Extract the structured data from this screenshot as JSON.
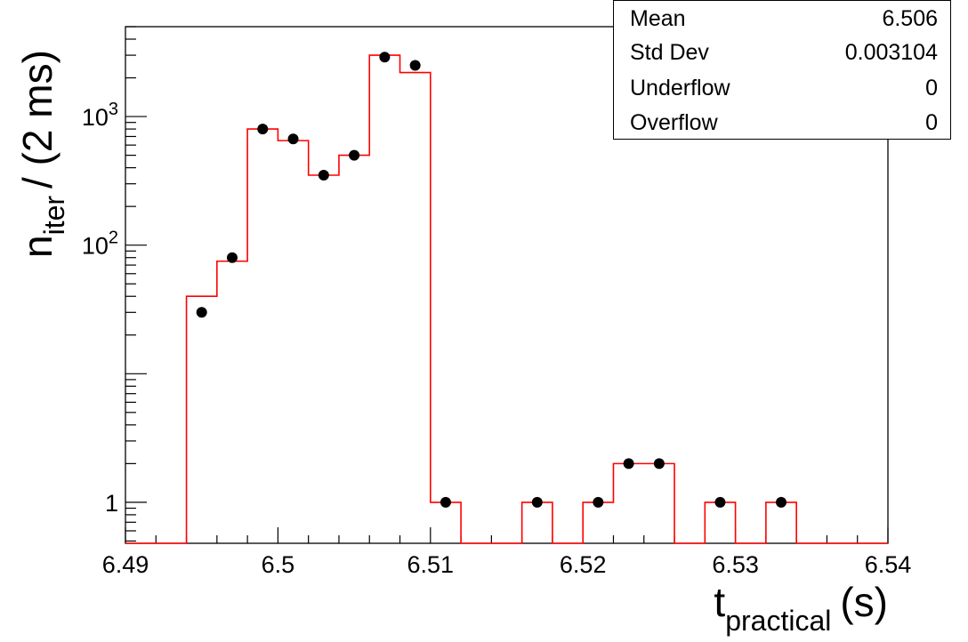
{
  "chart_data": {
    "type": "histogram",
    "xlabel_main": "t",
    "xlabel_sub": "practical",
    "xlabel_unit": "(s)",
    "ylabel_main": "n",
    "ylabel_sub": "iter",
    "ylabel_unit": "/ (2 ms)",
    "y_scale": "log",
    "xlim": [
      6.49,
      6.54
    ],
    "ylim": [
      0.48,
      5000
    ],
    "x_ticks": [
      "6.49",
      "6.5",
      "6.51",
      "6.52",
      "6.53",
      "6.54"
    ],
    "x_tick_values": [
      6.49,
      6.5,
      6.51,
      6.52,
      6.53,
      6.54
    ],
    "y_labeled_ticks": [
      {
        "value": 1,
        "base": "1",
        "exp": ""
      },
      {
        "value": 100,
        "base": "10",
        "exp": "2"
      },
      {
        "value": 1000,
        "base": "10",
        "exp": "3"
      }
    ],
    "histogram": {
      "color": "#ff0000",
      "bin_edges": [
        6.49,
        6.492,
        6.494,
        6.496,
        6.498,
        6.5,
        6.502,
        6.504,
        6.506,
        6.508,
        6.51,
        6.512,
        6.514,
        6.516,
        6.518,
        6.52,
        6.522,
        6.524,
        6.526,
        6.528,
        6.53,
        6.532,
        6.534,
        6.536,
        6.538,
        6.54
      ],
      "counts": [
        0,
        0,
        40,
        75,
        800,
        650,
        350,
        500,
        3000,
        2200,
        1,
        0,
        0,
        1,
        0,
        1,
        2,
        2,
        0,
        1,
        0,
        1,
        0,
        0,
        0
      ]
    },
    "points": {
      "color": "#000000",
      "x": [
        6.495,
        6.497,
        6.499,
        6.501,
        6.503,
        6.505,
        6.507,
        6.509,
        6.511,
        6.517,
        6.521,
        6.523,
        6.525,
        6.529,
        6.533
      ],
      "y": [
        30,
        80,
        800,
        670,
        350,
        500,
        2900,
        2500,
        1,
        1,
        1,
        2,
        2,
        1,
        1
      ]
    }
  },
  "stats": {
    "rows": [
      {
        "name": "Mean",
        "value": "6.506"
      },
      {
        "name": "Std Dev",
        "value": "0.003104"
      },
      {
        "name": "Underflow",
        "value": "0"
      },
      {
        "name": "Overflow",
        "value": "0"
      }
    ]
  }
}
